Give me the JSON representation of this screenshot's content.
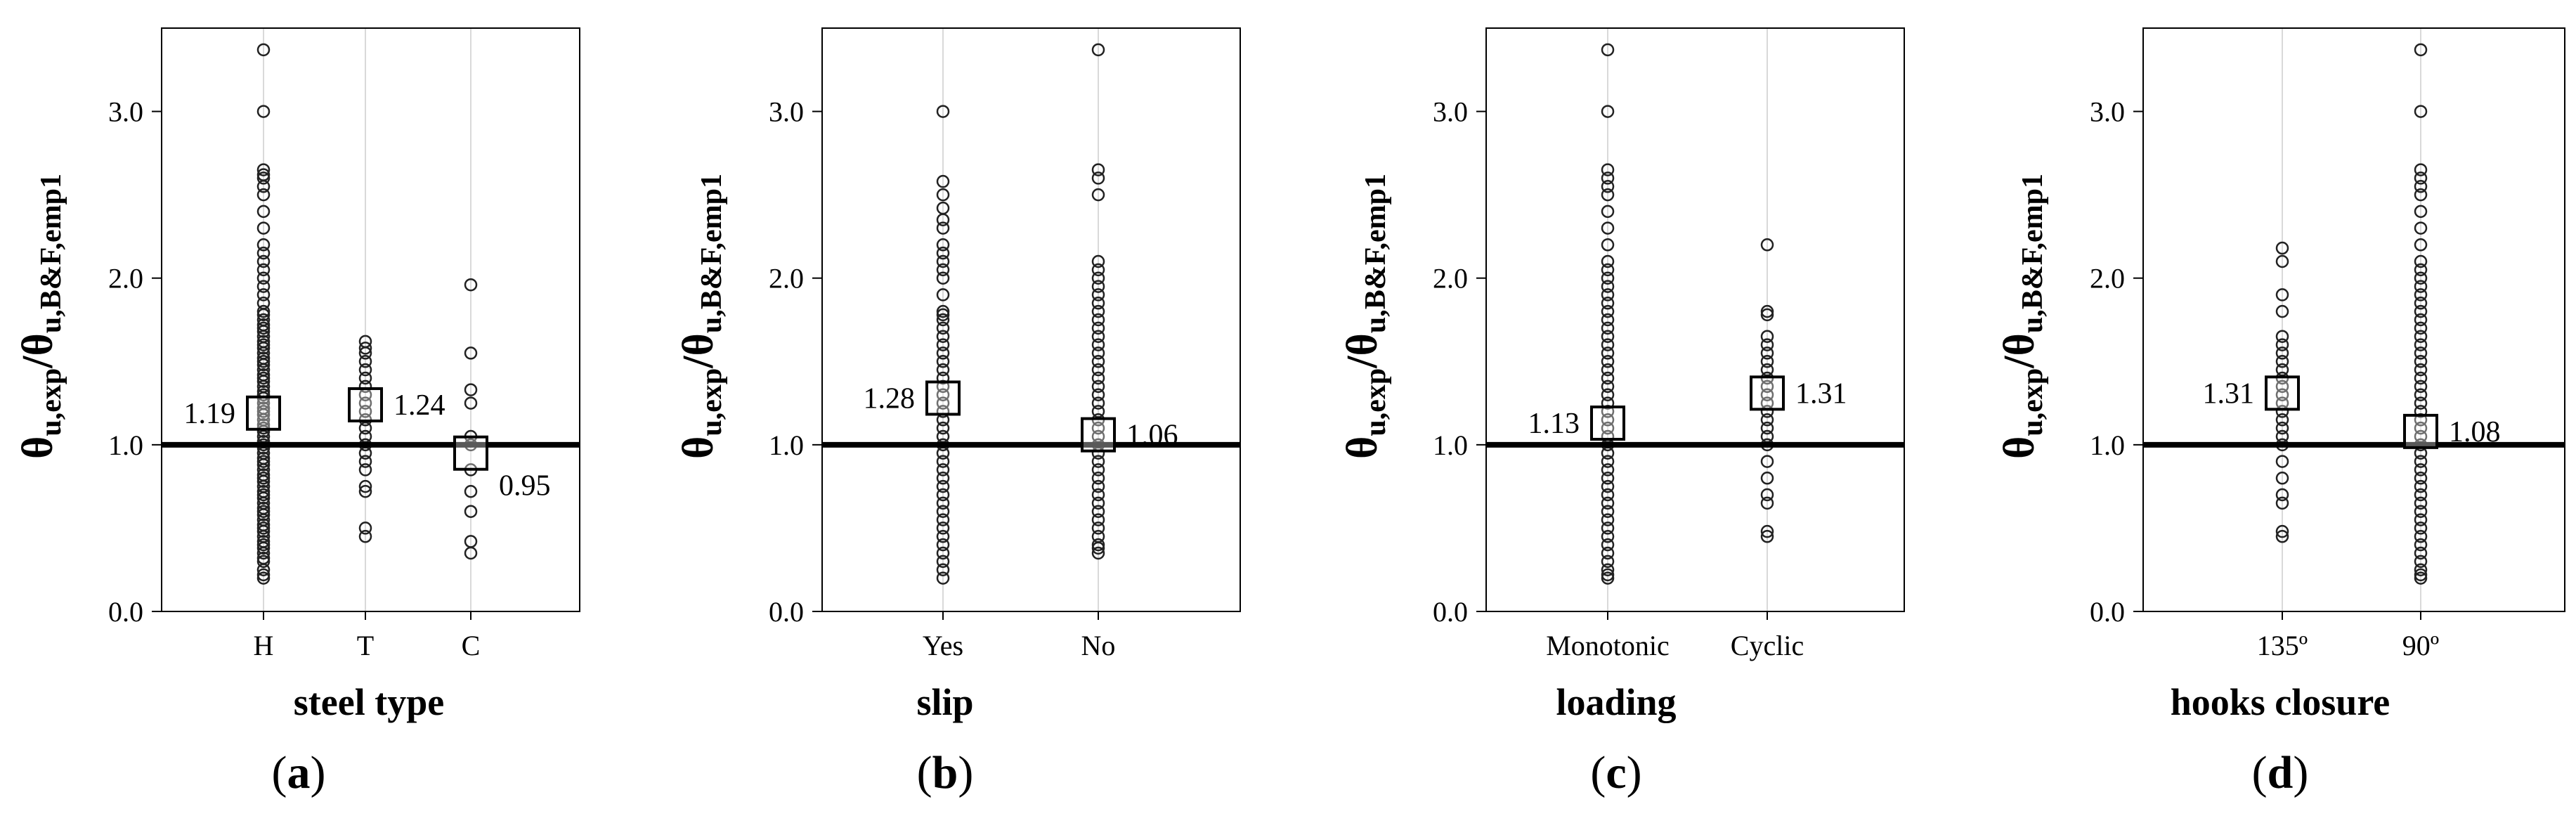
{
  "y_axis_label": {
    "main": "θ",
    "sub1": "u,exp",
    "slash": "/",
    "sub2": "u,B&F,emp1"
  },
  "chart_data": [
    {
      "type": "scatter",
      "panel_label": "a",
      "xlabel": "steel type",
      "ylabel": "θu,exp/θu,B&F,emp1",
      "ylim": [
        0,
        3.5
      ],
      "yticks": [
        "0.0",
        "1.0",
        "2.0",
        "3.0"
      ],
      "reference_line": 1.0,
      "grid": "vertical",
      "categories": [
        "H",
        "T",
        "C"
      ],
      "series": [
        {
          "name": "H",
          "mean": 1.19,
          "mean_label": "1.19",
          "label_side": "left",
          "values": [
            0.2,
            0.22,
            0.25,
            0.3,
            0.32,
            0.35,
            0.38,
            0.4,
            0.42,
            0.45,
            0.48,
            0.5,
            0.52,
            0.55,
            0.58,
            0.6,
            0.62,
            0.65,
            0.68,
            0.7,
            0.72,
            0.75,
            0.78,
            0.8,
            0.82,
            0.85,
            0.88,
            0.9,
            0.92,
            0.95,
            0.98,
            1.0,
            1.02,
            1.05,
            1.08,
            1.1,
            1.12,
            1.15,
            1.18,
            1.2,
            1.22,
            1.25,
            1.28,
            1.3,
            1.32,
            1.35,
            1.38,
            1.4,
            1.42,
            1.45,
            1.48,
            1.5,
            1.52,
            1.55,
            1.58,
            1.6,
            1.62,
            1.65,
            1.68,
            1.7,
            1.72,
            1.75,
            1.78,
            1.8,
            1.85,
            1.9,
            1.95,
            2.0,
            2.05,
            2.1,
            2.15,
            2.2,
            2.3,
            2.4,
            2.5,
            2.55,
            2.6,
            2.62,
            2.65,
            3.0,
            3.37
          ]
        },
        {
          "name": "T",
          "mean": 1.24,
          "mean_label": "1.24",
          "label_side": "right",
          "values": [
            0.45,
            0.5,
            0.72,
            0.75,
            0.85,
            0.9,
            0.95,
            1.0,
            1.05,
            1.1,
            1.15,
            1.2,
            1.25,
            1.3,
            1.35,
            1.4,
            1.45,
            1.5,
            1.55,
            1.58,
            1.62
          ]
        },
        {
          "name": "C",
          "mean": 0.95,
          "mean_label": "0.95",
          "label_side": "right",
          "values": [
            0.35,
            0.42,
            0.6,
            0.72,
            0.85,
            1.0,
            1.05,
            1.25,
            1.33,
            1.55,
            1.96
          ]
        }
      ]
    },
    {
      "type": "scatter",
      "panel_label": "b",
      "xlabel": "slip",
      "ylabel": "θu,exp/θu,B&F,emp1",
      "ylim": [
        0,
        3.5
      ],
      "yticks": [
        "0.0",
        "1.0",
        "2.0",
        "3.0"
      ],
      "reference_line": 1.0,
      "grid": "vertical",
      "categories": [
        "Yes",
        "No"
      ],
      "series": [
        {
          "name": "Yes",
          "mean": 1.28,
          "mean_label": "1.28",
          "label_side": "left",
          "values": [
            0.2,
            0.25,
            0.3,
            0.35,
            0.4,
            0.45,
            0.5,
            0.55,
            0.6,
            0.65,
            0.7,
            0.75,
            0.8,
            0.85,
            0.9,
            0.95,
            1.0,
            1.05,
            1.1,
            1.15,
            1.2,
            1.25,
            1.3,
            1.35,
            1.4,
            1.45,
            1.5,
            1.55,
            1.6,
            1.65,
            1.7,
            1.75,
            1.78,
            1.8,
            1.9,
            2.0,
            2.05,
            2.1,
            2.15,
            2.2,
            2.3,
            2.35,
            2.42,
            2.5,
            2.58,
            3.0
          ]
        },
        {
          "name": "No",
          "mean": 1.06,
          "mean_label": "1.06",
          "label_side": "right",
          "values": [
            0.35,
            0.38,
            0.4,
            0.45,
            0.5,
            0.55,
            0.6,
            0.65,
            0.7,
            0.75,
            0.8,
            0.85,
            0.9,
            0.95,
            1.0,
            1.05,
            1.1,
            1.15,
            1.2,
            1.25,
            1.3,
            1.35,
            1.4,
            1.45,
            1.5,
            1.55,
            1.6,
            1.65,
            1.7,
            1.75,
            1.8,
            1.85,
            1.9,
            1.95,
            2.0,
            2.05,
            2.1,
            2.5,
            2.6,
            2.65,
            3.37
          ]
        }
      ]
    },
    {
      "type": "scatter",
      "panel_label": "c",
      "xlabel": "loading",
      "ylabel": "θu,exp/θu,B&F,emp1",
      "ylim": [
        0,
        3.5
      ],
      "yticks": [
        "0.0",
        "1.0",
        "2.0",
        "3.0"
      ],
      "reference_line": 1.0,
      "grid": "vertical",
      "categories": [
        "Monotonic",
        "Cyclic"
      ],
      "series": [
        {
          "name": "Monotonic",
          "mean": 1.13,
          "mean_label": "1.13",
          "label_side": "left",
          "values": [
            0.2,
            0.22,
            0.25,
            0.3,
            0.35,
            0.4,
            0.45,
            0.5,
            0.55,
            0.6,
            0.65,
            0.7,
            0.75,
            0.8,
            0.85,
            0.9,
            0.95,
            1.0,
            1.05,
            1.1,
            1.15,
            1.2,
            1.25,
            1.3,
            1.35,
            1.4,
            1.45,
            1.5,
            1.55,
            1.6,
            1.65,
            1.7,
            1.75,
            1.8,
            1.85,
            1.9,
            1.95,
            2.0,
            2.05,
            2.1,
            2.2,
            2.3,
            2.4,
            2.5,
            2.55,
            2.6,
            2.65,
            3.0,
            3.37
          ]
        },
        {
          "name": "Cyclic",
          "mean": 1.31,
          "mean_label": "1.31",
          "label_side": "right",
          "values": [
            0.45,
            0.48,
            0.65,
            0.7,
            0.8,
            0.9,
            1.0,
            1.05,
            1.1,
            1.15,
            1.2,
            1.25,
            1.3,
            1.35,
            1.4,
            1.45,
            1.5,
            1.55,
            1.6,
            1.65,
            1.78,
            1.8,
            2.2
          ]
        }
      ]
    },
    {
      "type": "scatter",
      "panel_label": "d",
      "xlabel": "hooks  closure",
      "ylabel": "θu,exp/θu,B&F,emp1",
      "ylim": [
        0,
        3.5
      ],
      "yticks": [
        "0.0",
        "1.0",
        "2.0",
        "3.0"
      ],
      "reference_line": 1.0,
      "grid": "vertical",
      "categories": [
        "135º",
        "90º"
      ],
      "series": [
        {
          "name": "135º",
          "mean": 1.31,
          "mean_label": "1.31",
          "label_side": "left",
          "values": [
            0.45,
            0.48,
            0.65,
            0.7,
            0.8,
            0.9,
            1.0,
            1.05,
            1.1,
            1.15,
            1.2,
            1.25,
            1.3,
            1.35,
            1.4,
            1.45,
            1.5,
            1.55,
            1.6,
            1.65,
            1.8,
            1.9,
            2.1,
            2.18
          ]
        },
        {
          "name": "90º",
          "mean": 1.08,
          "mean_label": "1.08",
          "label_side": "right",
          "values": [
            0.2,
            0.22,
            0.25,
            0.3,
            0.35,
            0.4,
            0.45,
            0.5,
            0.55,
            0.6,
            0.65,
            0.7,
            0.75,
            0.8,
            0.85,
            0.9,
            0.95,
            1.0,
            1.05,
            1.1,
            1.15,
            1.2,
            1.25,
            1.3,
            1.35,
            1.4,
            1.45,
            1.5,
            1.55,
            1.6,
            1.65,
            1.7,
            1.75,
            1.8,
            1.85,
            1.9,
            1.95,
            2.0,
            2.05,
            2.1,
            2.2,
            2.3,
            2.4,
            2.5,
            2.55,
            2.6,
            2.65,
            3.0,
            3.37
          ]
        }
      ]
    }
  ]
}
